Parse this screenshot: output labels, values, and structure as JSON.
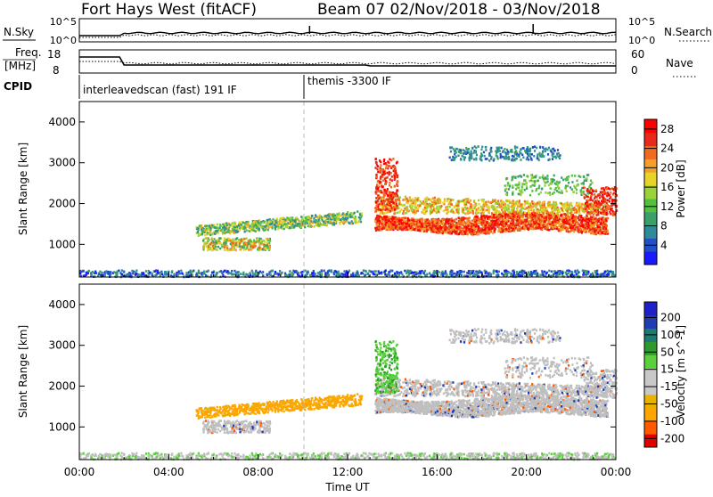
{
  "header": {
    "title": "Fort Hays West (fitACF)",
    "subtitle": "Beam 07  02/Nov/2018 - 03/Nov/2018"
  },
  "top_panel": {
    "left_label": "N.Sky",
    "right_label": "N.Search",
    "left_ticks": [
      "10^5",
      "10^0"
    ],
    "right_ticks": [
      "10^5",
      "10^0"
    ]
  },
  "freq_panel": {
    "left_label_1": "Freq.",
    "left_label_2": "[MHz]",
    "right_label": "Nave",
    "left_ticks": [
      "18",
      "8"
    ],
    "right_ticks": [
      "60",
      "0"
    ]
  },
  "cpid_panel": {
    "label": "CPID",
    "segments": [
      "interleavedscan (fast) 191 IF",
      "themis -3300 IF"
    ]
  },
  "colors": {
    "power_palette": [
      "#1a1aff",
      "#2050c8",
      "#2f8a9c",
      "#3aa06a",
      "#55c040",
      "#9ad23a",
      "#e8d428",
      "#f2a02a",
      "#f06a20",
      "#e82a1a",
      "#ff0000"
    ],
    "velocity_palette": [
      "#e00000",
      "#ff5a00",
      "#ffa400",
      "#e6b400",
      "#c8c8c8",
      "#c8c8c8",
      "#5ad03c",
      "#2e9a2e",
      "#1e7a6e",
      "#1e3cb4",
      "#2020c8"
    ],
    "ground_scatter": "#bfbfbf"
  },
  "chart_data": [
    {
      "type": "heatmap",
      "title": "",
      "xlabel": "",
      "ylabel": "Slant Range [km]",
      "xlim": [
        0,
        24
      ],
      "ylim": [
        200,
        4500
      ],
      "yticks": [
        1000,
        2000,
        3000,
        4000
      ],
      "colorbar": {
        "label": "Power [dB]",
        "ticks": [
          4,
          8,
          12,
          16,
          20,
          24,
          28
        ],
        "range": [
          0,
          30
        ]
      }
    },
    {
      "type": "heatmap",
      "title": "",
      "xlabel": "Time UT",
      "ylabel": "Slant Range [km]",
      "xlim": [
        0,
        24
      ],
      "ylim": [
        200,
        4500
      ],
      "yticks": [
        1000,
        2000,
        3000,
        4000
      ],
      "xticks": [
        "00:00",
        "04:00",
        "08:00",
        "12:00",
        "16:00",
        "20:00",
        "00:00"
      ],
      "colorbar": {
        "label": "Velocity [m s^-1]",
        "ticks": [
          "200",
          "100",
          "50",
          "15",
          "-15",
          "-50",
          "-100",
          "-200"
        ]
      }
    }
  ]
}
